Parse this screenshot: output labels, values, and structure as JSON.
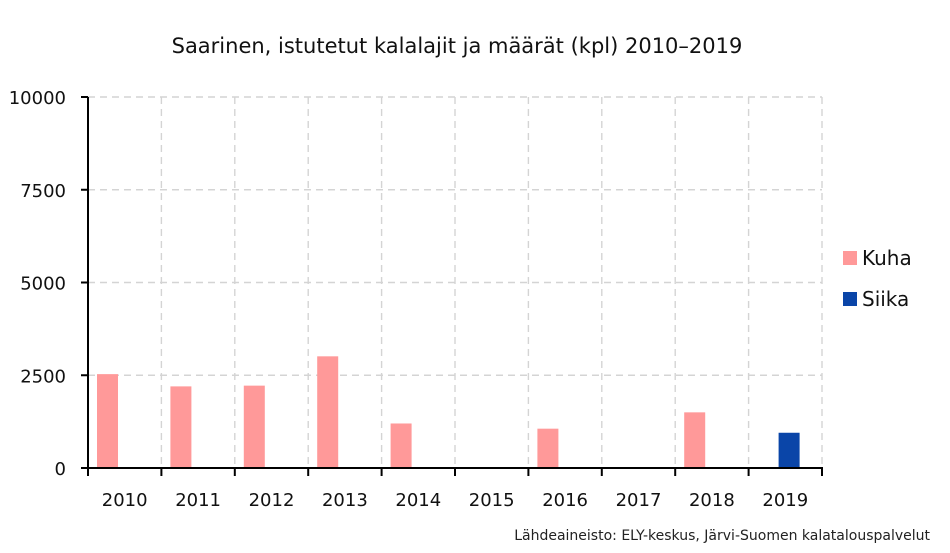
{
  "chart_data": {
    "type": "bar",
    "title": "Saarinen, istutetut kalalajit ja määrät (kpl) 2010–2019",
    "xlabel": "",
    "ylabel": "",
    "categories": [
      "2010",
      "2011",
      "2012",
      "2013",
      "2014",
      "2015",
      "2016",
      "2017",
      "2018",
      "2019"
    ],
    "series": [
      {
        "name": "Kuha",
        "color": "#ff9999",
        "values": [
          2530,
          2200,
          2220,
          3010,
          1200,
          0,
          1060,
          0,
          1500,
          0
        ]
      },
      {
        "name": "Siika",
        "color": "#0a45a8",
        "values": [
          0,
          0,
          0,
          0,
          0,
          0,
          0,
          0,
          0,
          950
        ]
      }
    ],
    "ylim": [
      0,
      10000
    ],
    "yticks": [
      "0",
      "2500",
      "5000",
      "7500",
      "10000"
    ],
    "grid": true,
    "legend_position": "right"
  },
  "source_text": "Lähdeaineisto: ELY-keskus, Järvi-Suomen kalatalouspalvelut"
}
